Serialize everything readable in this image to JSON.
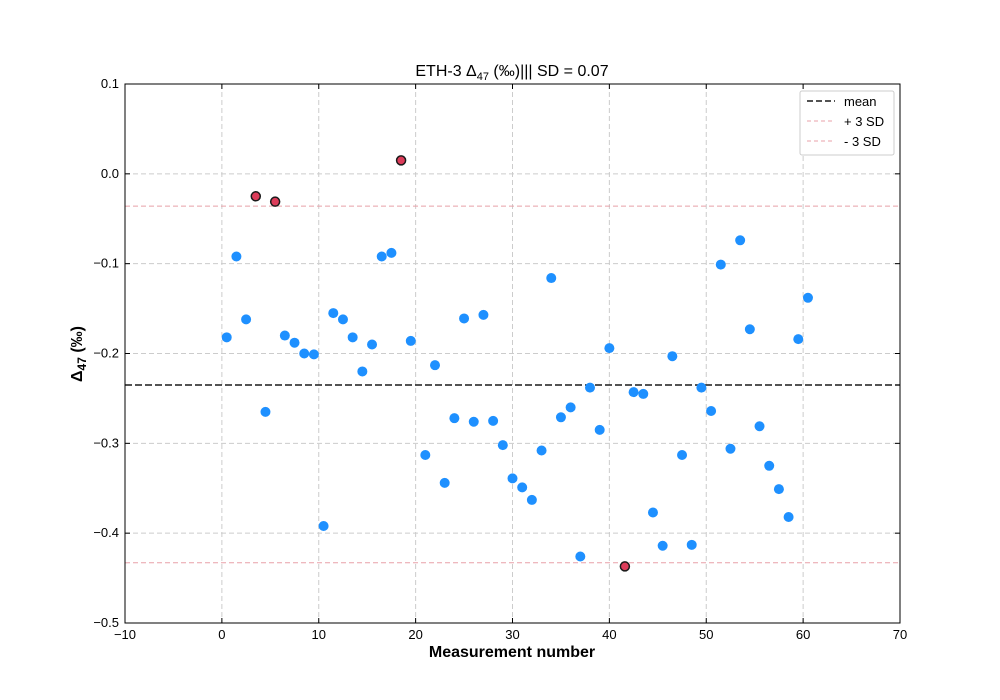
{
  "chart_data": {
    "type": "scatter",
    "title_main": "ETH-3 Δ",
    "title_sub": "47",
    "title_rest": " (‰)||| SD =  0.07",
    "xlabel": "Measurement number",
    "ylabel_main": "Δ",
    "ylabel_sub": "47",
    "ylabel_rest": " (‰)",
    "xlim": [
      -10,
      70
    ],
    "ylim": [
      -0.5,
      0.1
    ],
    "xticks": [
      -10,
      0,
      10,
      20,
      30,
      40,
      50,
      60,
      70
    ],
    "xtick_labels": [
      "−10",
      "0",
      "10",
      "20",
      "30",
      "40",
      "50",
      "60",
      "70"
    ],
    "yticks": [
      -0.5,
      -0.4,
      -0.3,
      -0.2,
      -0.1,
      0.0,
      0.1
    ],
    "ytick_labels": [
      "−0.5",
      "−0.4",
      "−0.3",
      "−0.2",
      "−0.1",
      "0.0",
      "0.1"
    ],
    "grid": true,
    "legend_position": "top-right",
    "mean": -0.235,
    "upper_3sd": -0.036,
    "lower_3sd": -0.433,
    "colors": {
      "normal": "#1e90ff",
      "outlier_fill": "#dc3c5a",
      "outlier_edge": "#1a1a1a",
      "mean_line": "#1a1a1a",
      "sd_line": "#e8a0a8",
      "grid": "#cccccc"
    },
    "legend": [
      {
        "label": "mean",
        "style": "mean"
      },
      {
        "label": "+ 3 SD",
        "style": "sd"
      },
      {
        "label": "- 3 SD",
        "style": "sd"
      }
    ],
    "points": [
      {
        "x": 0.5,
        "y": -0.182,
        "outlier": false
      },
      {
        "x": 1.5,
        "y": -0.092,
        "outlier": false
      },
      {
        "x": 2.5,
        "y": -0.162,
        "outlier": false
      },
      {
        "x": 3.5,
        "y": -0.025,
        "outlier": true
      },
      {
        "x": 4.5,
        "y": -0.265,
        "outlier": false
      },
      {
        "x": 5.5,
        "y": -0.031,
        "outlier": true
      },
      {
        "x": 6.5,
        "y": -0.18,
        "outlier": false
      },
      {
        "x": 7.5,
        "y": -0.188,
        "outlier": false
      },
      {
        "x": 8.5,
        "y": -0.2,
        "outlier": false
      },
      {
        "x": 9.5,
        "y": -0.201,
        "outlier": false
      },
      {
        "x": 10.5,
        "y": -0.392,
        "outlier": false
      },
      {
        "x": 11.5,
        "y": -0.155,
        "outlier": false
      },
      {
        "x": 12.5,
        "y": -0.162,
        "outlier": false
      },
      {
        "x": 13.5,
        "y": -0.182,
        "outlier": false
      },
      {
        "x": 14.5,
        "y": -0.22,
        "outlier": false
      },
      {
        "x": 15.5,
        "y": -0.19,
        "outlier": false
      },
      {
        "x": 16.5,
        "y": -0.092,
        "outlier": false
      },
      {
        "x": 17.5,
        "y": -0.088,
        "outlier": false
      },
      {
        "x": 18.5,
        "y": 0.015,
        "outlier": true
      },
      {
        "x": 19.5,
        "y": -0.186,
        "outlier": false
      },
      {
        "x": 21.0,
        "y": -0.313,
        "outlier": false
      },
      {
        "x": 22.0,
        "y": -0.213,
        "outlier": false
      },
      {
        "x": 23.0,
        "y": -0.344,
        "outlier": false
      },
      {
        "x": 24.0,
        "y": -0.272,
        "outlier": false
      },
      {
        "x": 25.0,
        "y": -0.161,
        "outlier": false
      },
      {
        "x": 26.0,
        "y": -0.276,
        "outlier": false
      },
      {
        "x": 27.0,
        "y": -0.157,
        "outlier": false
      },
      {
        "x": 28.0,
        "y": -0.275,
        "outlier": false
      },
      {
        "x": 29.0,
        "y": -0.302,
        "outlier": false
      },
      {
        "x": 30.0,
        "y": -0.339,
        "outlier": false
      },
      {
        "x": 31.0,
        "y": -0.349,
        "outlier": false
      },
      {
        "x": 32.0,
        "y": -0.363,
        "outlier": false
      },
      {
        "x": 33.0,
        "y": -0.308,
        "outlier": false
      },
      {
        "x": 34.0,
        "y": -0.116,
        "outlier": false
      },
      {
        "x": 35.0,
        "y": -0.271,
        "outlier": false
      },
      {
        "x": 36.0,
        "y": -0.26,
        "outlier": false
      },
      {
        "x": 37.0,
        "y": -0.426,
        "outlier": false
      },
      {
        "x": 38.0,
        "y": -0.238,
        "outlier": false
      },
      {
        "x": 39.0,
        "y": -0.285,
        "outlier": false
      },
      {
        "x": 40.0,
        "y": -0.194,
        "outlier": false
      },
      {
        "x": 41.6,
        "y": -0.437,
        "outlier": true
      },
      {
        "x": 42.5,
        "y": -0.243,
        "outlier": false
      },
      {
        "x": 43.5,
        "y": -0.245,
        "outlier": false
      },
      {
        "x": 44.5,
        "y": -0.377,
        "outlier": false
      },
      {
        "x": 45.5,
        "y": -0.414,
        "outlier": false
      },
      {
        "x": 46.5,
        "y": -0.203,
        "outlier": false
      },
      {
        "x": 47.5,
        "y": -0.313,
        "outlier": false
      },
      {
        "x": 48.5,
        "y": -0.413,
        "outlier": false
      },
      {
        "x": 49.5,
        "y": -0.238,
        "outlier": false
      },
      {
        "x": 50.5,
        "y": -0.264,
        "outlier": false
      },
      {
        "x": 51.5,
        "y": -0.101,
        "outlier": false
      },
      {
        "x": 52.5,
        "y": -0.306,
        "outlier": false
      },
      {
        "x": 53.5,
        "y": -0.074,
        "outlier": false
      },
      {
        "x": 54.5,
        "y": -0.173,
        "outlier": false
      },
      {
        "x": 55.5,
        "y": -0.281,
        "outlier": false
      },
      {
        "x": 56.5,
        "y": -0.325,
        "outlier": false
      },
      {
        "x": 57.5,
        "y": -0.351,
        "outlier": false
      },
      {
        "x": 58.5,
        "y": -0.382,
        "outlier": false
      },
      {
        "x": 59.5,
        "y": -0.184,
        "outlier": false
      },
      {
        "x": 60.5,
        "y": -0.138,
        "outlier": false
      }
    ]
  }
}
